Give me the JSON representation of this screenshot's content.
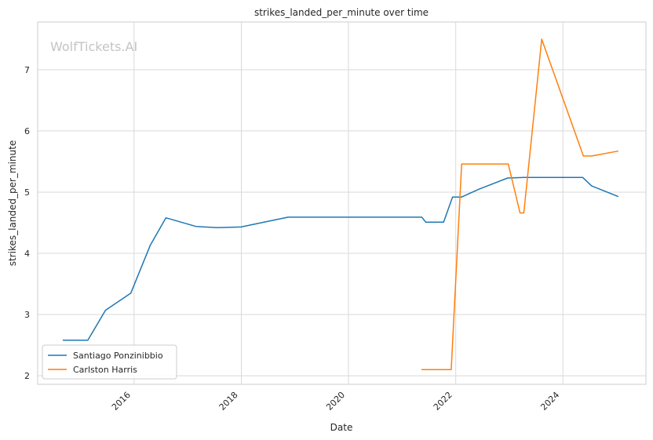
{
  "chart_data": {
    "type": "line",
    "title": "strikes_landed_per_minute over time",
    "xlabel": "Date",
    "ylabel": "strikes_landed_per_minute",
    "watermark": "WolfTickets.AI",
    "xlim": [
      "2014-03-15",
      "2025-07-20"
    ],
    "ylim": [
      1.86,
      7.78
    ],
    "x_ticks": [
      "2016-01-01",
      "2018-01-01",
      "2020-01-01",
      "2022-01-01",
      "2024-01-01"
    ],
    "x_tick_labels": [
      "2016",
      "2018",
      "2020",
      "2022",
      "2024"
    ],
    "y_ticks": [
      2,
      3,
      4,
      5,
      6,
      7
    ],
    "y_tick_labels": [
      "2",
      "3",
      "4",
      "5",
      "6",
      "7"
    ],
    "grid": true,
    "legend_position": "lower-left",
    "series": [
      {
        "name": "Santiago Ponzinibbio",
        "color": "#1f77b4",
        "points": [
          [
            "2014-09-05",
            2.58
          ],
          [
            "2015-02-20",
            2.58
          ],
          [
            "2015-06-20",
            3.07
          ],
          [
            "2015-12-10",
            3.35
          ],
          [
            "2016-04-20",
            4.13
          ],
          [
            "2016-08-05",
            4.58
          ],
          [
            "2017-02-25",
            4.44
          ],
          [
            "2017-07-20",
            4.42
          ],
          [
            "2017-12-30",
            4.43
          ],
          [
            "2018-11-15",
            4.59
          ],
          [
            "2021-05-15",
            4.59
          ],
          [
            "2021-06-10",
            4.51
          ],
          [
            "2021-10-10",
            4.51
          ],
          [
            "2021-12-10",
            4.92
          ],
          [
            "2022-02-10",
            4.92
          ],
          [
            "2022-06-10",
            5.05
          ],
          [
            "2022-12-20",
            5.23
          ],
          [
            "2023-04-10",
            5.24
          ],
          [
            "2024-05-15",
            5.24
          ],
          [
            "2024-07-15",
            5.1
          ],
          [
            "2025-01-10",
            4.93
          ]
        ]
      },
      {
        "name": "Carlston Harris",
        "color": "#ff7f0e",
        "points": [
          [
            "2021-05-15",
            2.1
          ],
          [
            "2021-12-01",
            2.1
          ],
          [
            "2022-02-10",
            5.46
          ],
          [
            "2022-12-25",
            5.46
          ],
          [
            "2023-03-15",
            4.66
          ],
          [
            "2023-04-10",
            4.66
          ],
          [
            "2023-08-10",
            7.5
          ],
          [
            "2024-05-20",
            5.59
          ],
          [
            "2024-07-15",
            5.59
          ],
          [
            "2025-01-10",
            5.67
          ]
        ]
      }
    ]
  }
}
